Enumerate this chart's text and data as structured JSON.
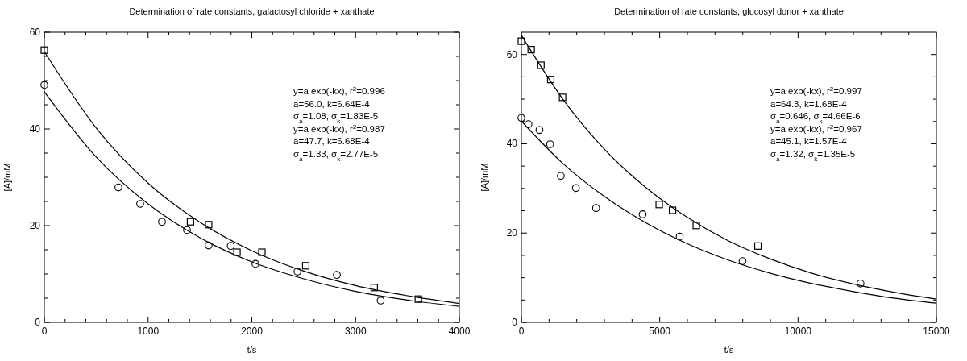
{
  "chart_data": [
    {
      "type": "scatter",
      "title": "Determination of rate constants, galactosyl chloride + xanthate",
      "xlabel": "t/s",
      "ylabel": "[A]/mM",
      "xlim": [
        0,
        4000
      ],
      "ylim": [
        0,
        60
      ],
      "xticks": [
        0,
        {
          "value": 200,
          "label": null
        },
        {
          "value": 400,
          "label": null
        },
        {
          "value": 600,
          "label": null
        },
        {
          "value": 800,
          "label": null
        },
        1000,
        {
          "value": 1200,
          "label": null
        },
        {
          "value": 1400,
          "label": null
        },
        {
          "value": 1600,
          "label": null
        },
        {
          "value": 1800,
          "label": null
        },
        2000,
        {
          "value": 2200,
          "label": null
        },
        {
          "value": 2400,
          "label": null
        },
        {
          "value": 2600,
          "label": null
        },
        {
          "value": 2800,
          "label": null
        },
        3000,
        {
          "value": 3200,
          "label": null
        },
        {
          "value": 3400,
          "label": null
        },
        {
          "value": 3600,
          "label": null
        },
        {
          "value": 3800,
          "label": null
        },
        4000
      ],
      "yticks": [
        0,
        {
          "value": 5,
          "label": null
        },
        {
          "value": 10,
          "label": null
        },
        {
          "value": 15,
          "label": null
        },
        20,
        {
          "value": 25,
          "label": null
        },
        {
          "value": 30,
          "label": null
        },
        {
          "value": 35,
          "label": null
        },
        40,
        {
          "value": 45,
          "label": null
        },
        {
          "value": 50,
          "label": null
        },
        {
          "value": 55,
          "label": null
        },
        60
      ],
      "grid": false,
      "series": [
        {
          "marker": "square",
          "color": "#000000",
          "x": [
            0,
            1409,
            1584,
            1857,
            2097,
            2520,
            3180,
            3605
          ],
          "values": [
            56.3,
            20.8,
            20.2,
            14.5,
            14.5,
            11.7,
            7.2,
            4.8
          ]
        },
        {
          "marker": "circle",
          "color": "#000000",
          "x": [
            0,
            714,
            924,
            1134,
            1375,
            1584,
            1797,
            2035,
            2440,
            2820,
            3242
          ],
          "values": [
            49.1,
            27.9,
            24.5,
            20.8,
            19.1,
            15.9,
            15.8,
            12.1,
            10.5,
            9.8,
            4.5
          ]
        },
        {
          "type": "line",
          "marker": "none",
          "line_style": "solid",
          "color": "#000000",
          "x": [
            0,
            500,
            1000,
            1500,
            2000,
            2500,
            3000,
            3500,
            4000
          ],
          "values": [
            56.0,
            40.2,
            28.8,
            20.7,
            14.8,
            10.6,
            7.6,
            5.5,
            3.9
          ]
        },
        {
          "type": "line",
          "marker": "none",
          "line_style": "solid",
          "color": "#000000",
          "x": [
            0,
            500,
            1000,
            1500,
            2000,
            2500,
            3000,
            3500,
            4000
          ],
          "values": [
            47.7,
            34.2,
            24.5,
            17.5,
            12.5,
            9.0,
            6.4,
            4.6,
            3.3
          ]
        }
      ],
      "annotations": [
        "y=a exp(-kx), r$^{2}$=0.996",
        "a=56.0, k=6.64E-4",
        "σ$_{a}$=1.08, σ$_{k}$=1.83E-5",
        "y=a exp(-kx),  r$^{2}$=0.987",
        "a=47.7, k=6.68E-4",
        "σ$_{a}$=1.33, σ$_{k}$=2.77E-5"
      ]
    },
    {
      "type": "scatter",
      "title": "Determination of rate constants, glucosyl donor + xanthate",
      "xlabel": "t/s",
      "ylabel": "[A]/mM",
      "xlim": [
        0,
        15000
      ],
      "ylim": [
        0,
        65
      ],
      "xticks": [
        0,
        {
          "value": 1000,
          "label": null
        },
        {
          "value": 2000,
          "label": null
        },
        {
          "value": 3000,
          "label": null
        },
        {
          "value": 4000,
          "label": null
        },
        5000,
        {
          "value": 6000,
          "label": null
        },
        {
          "value": 7000,
          "label": null
        },
        {
          "value": 8000,
          "label": null
        },
        {
          "value": 9000,
          "label": null
        },
        10000,
        {
          "value": 11000,
          "label": null
        },
        {
          "value": 12000,
          "label": null
        },
        {
          "value": 13000,
          "label": null
        },
        {
          "value": 14000,
          "label": null
        },
        15000
      ],
      "yticks": [
        0,
        {
          "value": 5,
          "label": null
        },
        {
          "value": 10,
          "label": null
        },
        {
          "value": 15,
          "label": null
        },
        20,
        {
          "value": 25,
          "label": null
        },
        {
          "value": 30,
          "label": null
        },
        {
          "value": 35,
          "label": null
        },
        40,
        {
          "value": 45,
          "label": null
        },
        {
          "value": 50,
          "label": null
        },
        {
          "value": 55,
          "label": null
        },
        60
      ],
      "grid": false,
      "series": [
        {
          "marker": "square",
          "color": "#000000",
          "x": [
            0,
            354,
            707,
            1061,
            1489,
            4982,
            5464,
            6321,
            8550
          ],
          "values": [
            63.0,
            61.1,
            57.6,
            54.4,
            50.4,
            26.4,
            25.1,
            21.7,
            17.1
          ]
        },
        {
          "marker": "circle",
          "color": "#000000",
          "x": [
            0,
            257,
            654,
            1039,
            1425,
            1971,
            2700,
            4382,
            5721,
            7993,
            12257
          ],
          "values": [
            45.8,
            44.4,
            43.1,
            39.9,
            32.8,
            30.1,
            25.6,
            24.2,
            19.2,
            13.7,
            8.7
          ]
        },
        {
          "type": "line",
          "marker": "none",
          "line_style": "solid",
          "color": "#000000",
          "x": [
            0,
            1500,
            3000,
            4500,
            6000,
            7500,
            9000,
            10500,
            12000,
            13500,
            15000
          ],
          "values": [
            64.3,
            50.0,
            38.8,
            30.2,
            23.5,
            18.2,
            14.2,
            11.0,
            8.6,
            6.7,
            5.2
          ]
        },
        {
          "type": "line",
          "marker": "none",
          "line_style": "solid",
          "color": "#000000",
          "x": [
            0,
            1500,
            3000,
            4500,
            6000,
            7500,
            9000,
            10500,
            12000,
            13500,
            15000
          ],
          "values": [
            45.1,
            35.6,
            28.2,
            22.3,
            17.6,
            13.9,
            11.0,
            8.7,
            6.9,
            5.4,
            4.3
          ]
        }
      ],
      "annotations": [
        "y=a exp(-kx), r$^{2}$=0.997",
        "a=64.3, k=1.68E-4",
        "σ$_{a}$=0.646, σ$_{k}$=4.66E-6",
        "y=a exp(-kx), r$^{2}$=0.967",
        "a=45.1, k=1.57E-4",
        "σ$_{a}$=1.32, σ$_{k}$=1.35E-5"
      ]
    }
  ]
}
